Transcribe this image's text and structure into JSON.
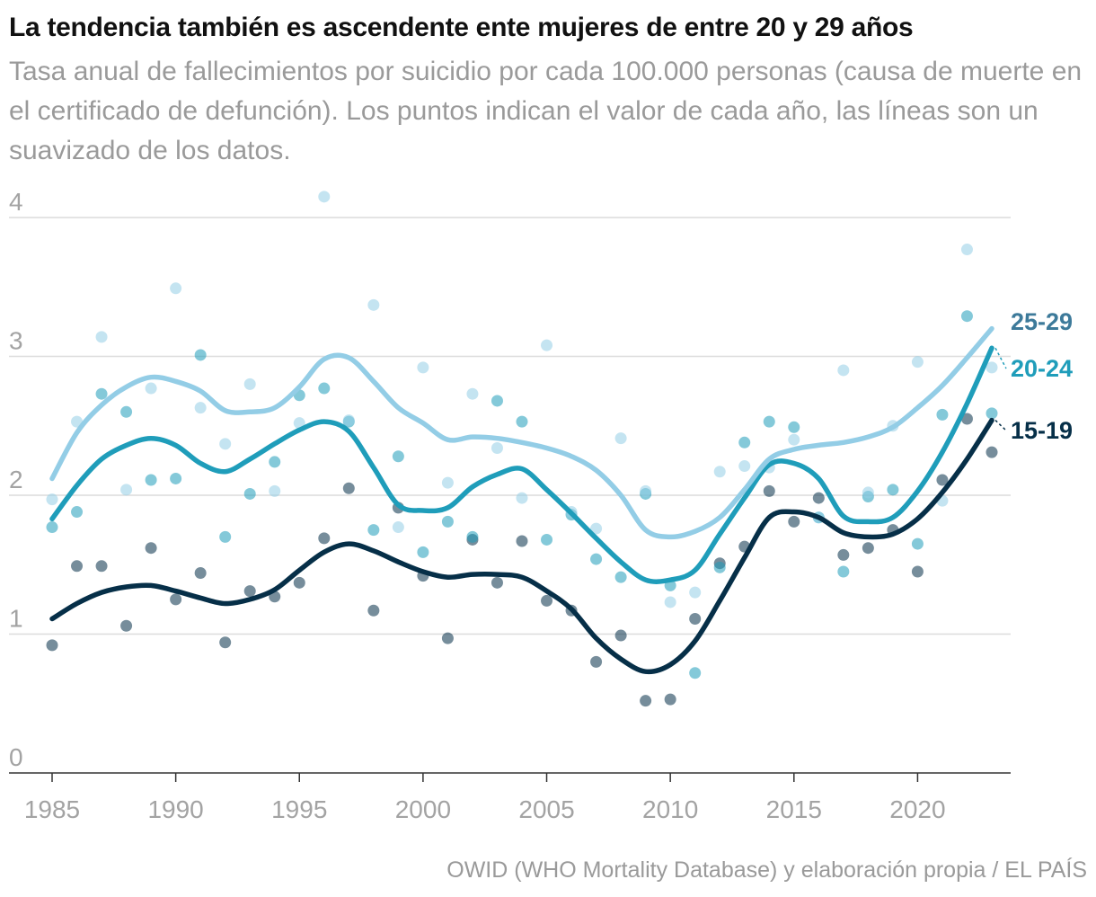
{
  "header": {
    "title": "La tendencia también es ascendente ente mujeres de entre 20 y 29 años",
    "subtitle": "Tasa anual de fallecimientos por suicidio por cada 100.000 personas (causa de muerte en el certificado de defunción). Los puntos indican el valor de cada año, las líneas son un suavizado de los datos."
  },
  "footer": {
    "source": "OWID (WHO Mortality Database) y elaboración propia / EL PAÍS"
  },
  "chart_data": {
    "type": "scatter",
    "title": "La tendencia también es ascendente ente mujeres de entre 20 y 29 años",
    "xlabel": "",
    "ylabel": "",
    "xlim": [
      1985,
      2023
    ],
    "ylim": [
      0,
      4
    ],
    "yticks": [
      0,
      1,
      2,
      3,
      4
    ],
    "xticks": [
      1985,
      1990,
      1995,
      2000,
      2005,
      2010,
      2015,
      2020
    ],
    "grid": true,
    "legend": "direct labels at right end of lines",
    "x": [
      1985,
      1986,
      1987,
      1988,
      1989,
      1990,
      1991,
      1992,
      1993,
      1994,
      1995,
      1996,
      1997,
      1998,
      1999,
      2000,
      2001,
      2002,
      2003,
      2004,
      2005,
      2006,
      2007,
      2008,
      2009,
      2010,
      2011,
      2012,
      2013,
      2014,
      2015,
      2016,
      2017,
      2018,
      2019,
      2020,
      2021,
      2022,
      2023
    ],
    "series": [
      {
        "name": "25-29",
        "label": "25-29",
        "color": "#93cde6",
        "label_color": "#3d7a9a",
        "points": [
          1.97,
          2.53,
          3.14,
          2.04,
          2.77,
          3.49,
          2.63,
          2.37,
          2.8,
          2.03,
          2.52,
          4.15,
          2.54,
          3.37,
          1.77,
          2.92,
          2.09,
          2.73,
          2.34,
          1.98,
          3.08,
          1.88,
          1.76,
          2.41,
          2.03,
          1.23,
          1.3,
          2.17,
          2.21,
          2.2,
          2.4,
          1.84,
          2.9,
          2.02,
          2.5,
          2.96,
          1.96,
          3.77,
          2.92
        ],
        "smooth": [
          2.12,
          2.45,
          2.65,
          2.78,
          2.85,
          2.82,
          2.75,
          2.61,
          2.6,
          2.63,
          2.78,
          2.98,
          2.99,
          2.82,
          2.63,
          2.52,
          2.4,
          2.42,
          2.41,
          2.38,
          2.34,
          2.28,
          2.18,
          2.0,
          1.75,
          1.7,
          1.74,
          1.84,
          2.04,
          2.26,
          2.33,
          2.36,
          2.38,
          2.42,
          2.49,
          2.63,
          2.79,
          2.99,
          3.2
        ]
      },
      {
        "name": "20-24",
        "label": "20-24",
        "color": "#1f9dba",
        "label_color": "#1f9dba",
        "points": [
          1.77,
          1.88,
          2.73,
          2.6,
          2.11,
          2.12,
          3.01,
          1.7,
          2.01,
          2.24,
          2.72,
          2.77,
          2.53,
          1.75,
          2.28,
          1.59,
          1.81,
          1.7,
          2.68,
          2.53,
          1.68,
          1.86,
          1.54,
          1.41,
          2.01,
          1.35,
          0.72,
          1.48,
          2.38,
          2.53,
          2.49,
          1.84,
          1.45,
          1.99,
          2.04,
          1.65,
          2.58,
          3.29,
          2.59
        ],
        "smooth": [
          1.83,
          2.07,
          2.26,
          2.36,
          2.41,
          2.36,
          2.23,
          2.17,
          2.26,
          2.37,
          2.47,
          2.53,
          2.46,
          2.2,
          1.93,
          1.89,
          1.91,
          2.06,
          2.15,
          2.19,
          2.04,
          1.87,
          1.69,
          1.52,
          1.39,
          1.39,
          1.46,
          1.72,
          1.98,
          2.22,
          2.23,
          2.12,
          1.85,
          1.81,
          1.84,
          2.03,
          2.31,
          2.66,
          3.06
        ]
      },
      {
        "name": "15-19",
        "label": "15-19",
        "color": "#062f48",
        "label_color": "#062f48",
        "points": [
          0.92,
          1.49,
          1.49,
          1.06,
          1.62,
          1.25,
          1.44,
          0.94,
          1.31,
          1.27,
          1.37,
          1.69,
          2.05,
          1.17,
          1.91,
          1.42,
          0.97,
          1.68,
          1.37,
          1.67,
          1.24,
          1.17,
          0.8,
          0.99,
          0.52,
          0.53,
          1.11,
          1.51,
          1.63,
          2.03,
          1.81,
          1.98,
          1.57,
          1.62,
          1.75,
          1.45,
          2.11,
          2.55,
          2.31
        ],
        "smooth": [
          1.11,
          1.22,
          1.3,
          1.34,
          1.35,
          1.31,
          1.26,
          1.22,
          1.25,
          1.32,
          1.46,
          1.59,
          1.65,
          1.6,
          1.52,
          1.45,
          1.41,
          1.43,
          1.43,
          1.41,
          1.31,
          1.18,
          0.97,
          0.82,
          0.73,
          0.78,
          0.95,
          1.24,
          1.55,
          1.84,
          1.88,
          1.84,
          1.73,
          1.7,
          1.72,
          1.83,
          2.02,
          2.26,
          2.54
        ]
      }
    ]
  }
}
